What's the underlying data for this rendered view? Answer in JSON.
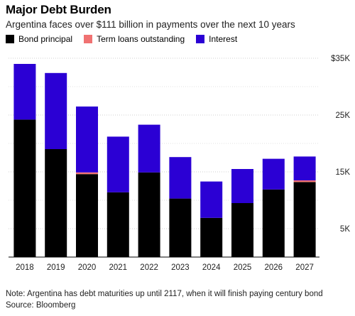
{
  "header": {
    "title": "Major Debt Burden",
    "subtitle": "Argentina faces over $111 billion in payments over the next 10 years"
  },
  "legend": [
    {
      "label": "Bond principal",
      "color": "#000000"
    },
    {
      "label": "Term loans outstanding",
      "color": "#f07272"
    },
    {
      "label": "Interest",
      "color": "#2b00d4"
    }
  ],
  "footer": {
    "note": "Note: Argentina has debt maturities up until 2117, when it will finish paying century bond",
    "source": "Source: Bloomberg"
  },
  "chart_data": {
    "type": "bar",
    "stacked": true,
    "title": "Major Debt Burden",
    "subtitle": "Argentina faces over $111 billion in payments over the next 10 years",
    "categories": [
      "2018",
      "2019",
      "2020",
      "2021",
      "2022",
      "2023",
      "2024",
      "2025",
      "2026",
      "2027"
    ],
    "series": [
      {
        "name": "Bond principal",
        "color": "#000000",
        "values": [
          24.2,
          19.0,
          14.6,
          11.4,
          14.9,
          10.3,
          6.9,
          9.5,
          11.9,
          13.2
        ]
      },
      {
        "name": "Term loans outstanding",
        "color": "#f07272",
        "values": [
          0,
          0,
          0.3,
          0,
          0,
          0,
          0,
          0,
          0,
          0.3
        ]
      },
      {
        "name": "Interest",
        "color": "#2b00d4",
        "values": [
          9.8,
          13.4,
          11.6,
          9.8,
          8.4,
          7.3,
          6.4,
          6.0,
          5.4,
          4.2
        ]
      }
    ],
    "ylim": [
      0,
      35
    ],
    "yticks": [
      5,
      15,
      25,
      35
    ],
    "ytick_labels": [
      "5K",
      "15K",
      "25K",
      "$35K"
    ],
    "grid": true,
    "legend_position": "top-left"
  }
}
